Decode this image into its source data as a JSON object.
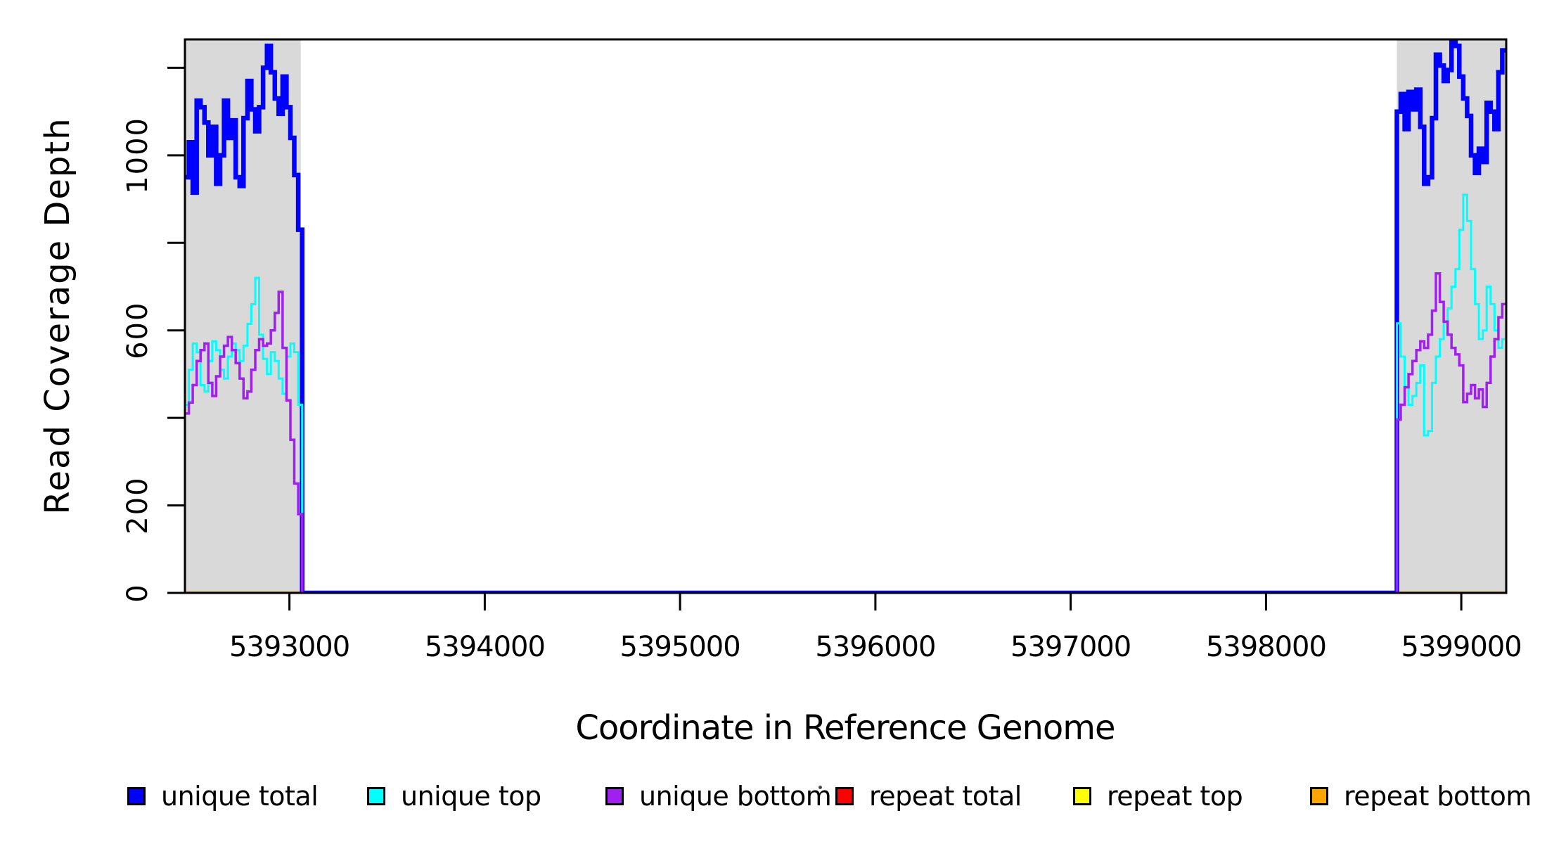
{
  "page": {
    "background": "#FFFFFF"
  },
  "chart_data": {
    "type": "line",
    "subtype": "step-coverage",
    "title": "",
    "xlabel": "Coordinate in Reference Genome",
    "ylabel": "Read Coverage Depth",
    "xlim": [
      5392465,
      5399230
    ],
    "ylim": [
      0,
      1265
    ],
    "grid": false,
    "legend_position": "bottom",
    "shade_color": "#D9D9D9",
    "shaded_regions": [
      {
        "from": 5392465,
        "to": 5393058
      },
      {
        "from": 5398670,
        "to": 5399230
      }
    ],
    "x_ticks": [
      {
        "v": 5393000,
        "label": "5393000"
      },
      {
        "v": 5394000,
        "label": "5394000"
      },
      {
        "v": 5395000,
        "label": "5395000"
      },
      {
        "v": 5396000,
        "label": "5396000"
      },
      {
        "v": 5397000,
        "label": "5397000"
      },
      {
        "v": 5398000,
        "label": "5398000"
      },
      {
        "v": 5399000,
        "label": "5399000"
      }
    ],
    "y_ticks": [
      {
        "v": 0,
        "label": "0"
      },
      {
        "v": 200,
        "label": "200"
      },
      {
        "v": 400,
        "label": ""
      },
      {
        "v": 600,
        "label": "600"
      },
      {
        "v": 800,
        "label": ""
      },
      {
        "v": 1000,
        "label": "1000"
      },
      {
        "v": 1200,
        "label": ""
      }
    ],
    "draw_order": [
      "repeat total",
      "repeat top",
      "repeat bottom",
      "unique total",
      "unique top",
      "unique bottom"
    ],
    "series": [
      {
        "name": "unique total",
        "color": "#0000FF",
        "width": 6.5,
        "segments": [
          {
            "start": 5392465,
            "dx": 20,
            "values": [
              950,
              1030,
              915,
              1125,
              1110,
              1075,
              1000,
              1065,
              935,
              1000,
              1125,
              1040,
              1080,
              950,
              930,
              1085,
              1170,
              1105,
              1055,
              1110,
              1200,
              1250,
              1190,
              1130,
              1095,
              1180,
              1110,
              1040,
              955,
              830
            ]
          },
          {
            "start": 5398670,
            "dx": 20,
            "values": [
              1100,
              1140,
              1060,
              1145,
              1105,
              1150,
              1065,
              935,
              950,
              1085,
              1230,
              1205,
              1170,
              1195,
              1265,
              1250,
              1180,
              1130,
              1090,
              1000,
              960,
              1015,
              985,
              1120,
              1100,
              1060,
              1190,
              1240
            ]
          }
        ]
      },
      {
        "name": "unique top",
        "color": "#00FFFF",
        "width": 3,
        "segments": [
          {
            "start": 5392465,
            "dx": 20,
            "values": [
              430,
              510,
              570,
              550,
              475,
              460,
              530,
              575,
              555,
              510,
              490,
              540,
              570,
              555,
              530,
              565,
              615,
              660,
              720,
              590,
              535,
              500,
              550,
              530,
              490,
              455,
              540,
              570,
              550,
              430
            ]
          },
          {
            "start": 5398670,
            "dx": 20,
            "values": [
              616,
              540,
              470,
              430,
              450,
              480,
              520,
              360,
              370,
              480,
              540,
              580,
              620,
              650,
              700,
              740,
              830,
              910,
              850,
              740,
              660,
              580,
              600,
              700,
              660,
              600,
              560,
              580
            ]
          }
        ]
      },
      {
        "name": "unique bottom",
        "color": "#A020F0",
        "width": 3.5,
        "segments": [
          {
            "start": 5392465,
            "dx": 20,
            "values": [
              410,
              435,
              475,
              530,
              555,
              570,
              480,
              450,
              495,
              540,
              565,
              585,
              555,
              525,
              490,
              445,
              460,
              510,
              555,
              580,
              565,
              570,
              600,
              640,
              688,
              560,
              440,
              350,
              250,
              180
            ]
          },
          {
            "start": 5398670,
            "dx": 20,
            "values": [
              396,
              430,
              470,
              500,
              530,
              555,
              575,
              560,
              590,
              645,
              730,
              665,
              620,
              590,
              560,
              545,
              520,
              436,
              455,
              475,
              445,
              465,
              425,
              480,
              540,
              580,
              630,
              660
            ]
          }
        ]
      },
      {
        "name": "repeat total",
        "color": "#FF0000",
        "width": 3,
        "flat": 0,
        "spans": [
          [
            5392465,
            5399230
          ]
        ]
      },
      {
        "name": "repeat top",
        "color": "#FFFF00",
        "width": 3,
        "flat": 0,
        "spans": [
          [
            5392465,
            5399230
          ]
        ]
      },
      {
        "name": "repeat bottom",
        "color": "#FFA500",
        "width": 4.5,
        "flat": 0,
        "spans": [
          [
            5392465,
            5393065
          ],
          [
            5398670,
            5399230
          ]
        ]
      }
    ]
  },
  "legend": {
    "items": [
      {
        "label": "unique total",
        "color": "#0000FF"
      },
      {
        "label": "unique top",
        "color": "#00FFFF"
      },
      {
        "label": "unique bottom",
        "color": "#A020F0"
      },
      {
        "label": "repeat total",
        "color": "#FF0000"
      },
      {
        "label": "repeat top",
        "color": "#FFFF00"
      },
      {
        "label": "repeat bottom",
        "color": "#FFA500"
      }
    ]
  },
  "stray_mark": "."
}
